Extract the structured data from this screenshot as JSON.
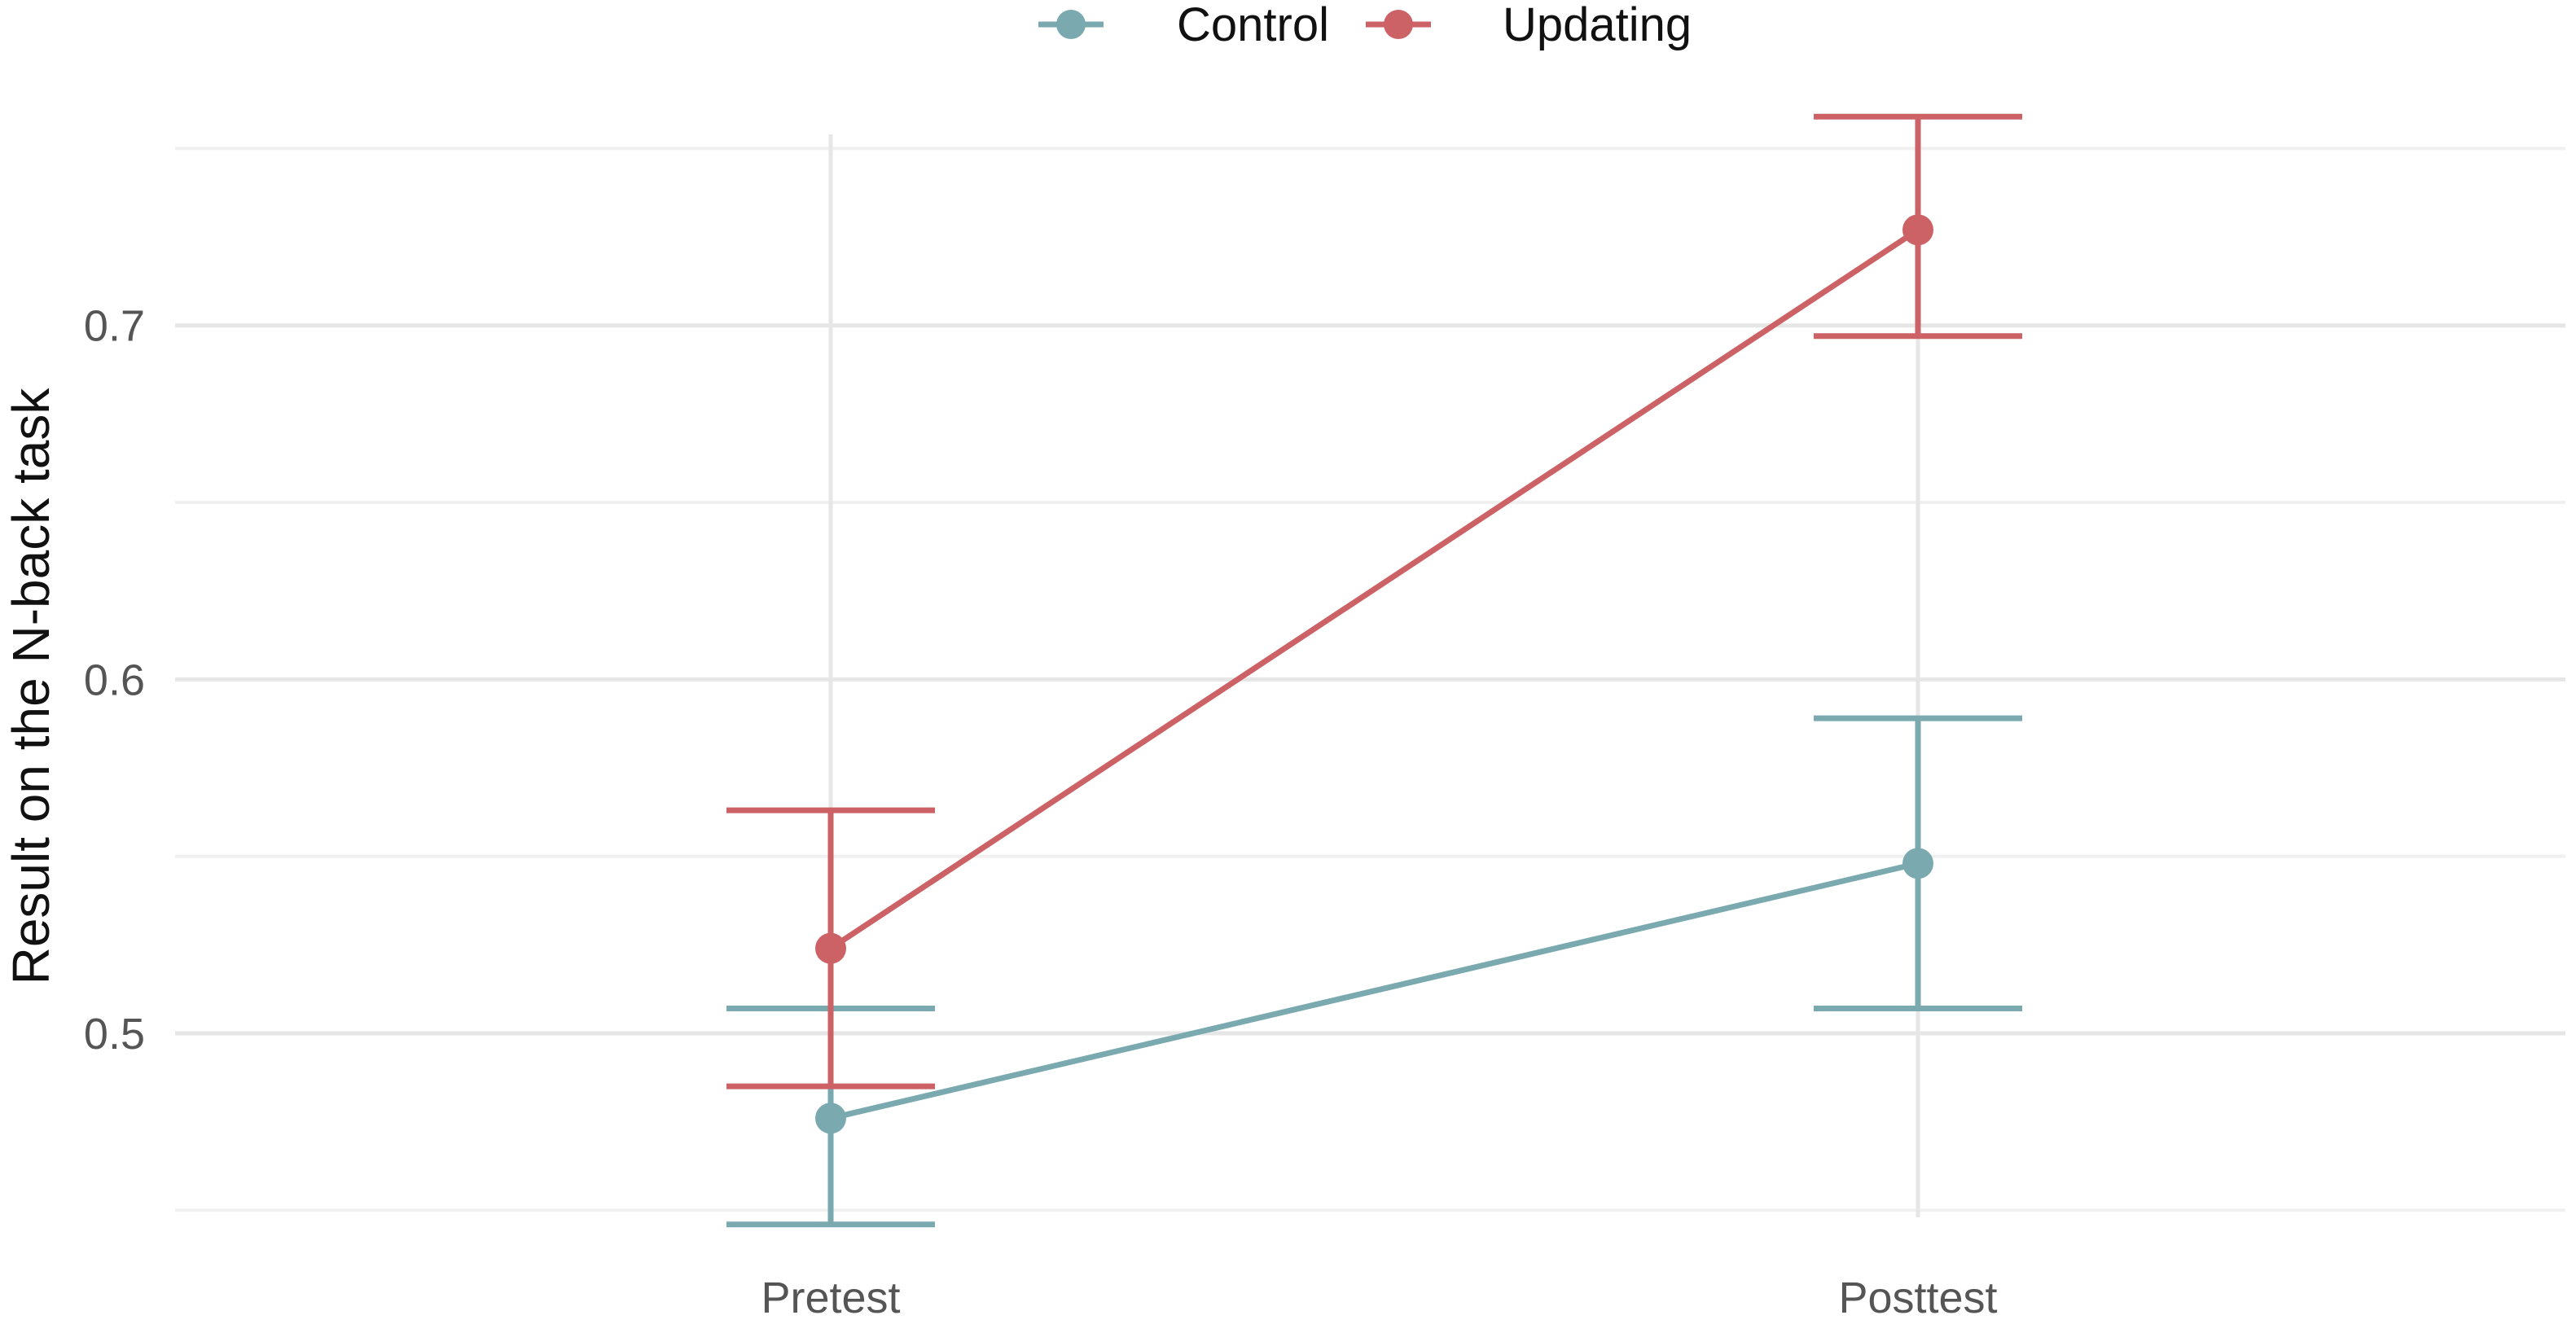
{
  "chart_data": {
    "type": "line",
    "categories": [
      "Pretest",
      "Posttest"
    ],
    "ylabel": "Result on the N-back task",
    "xlabel": "",
    "ylim": [
      0.448,
      0.754
    ],
    "yticks": [
      0.5,
      0.6,
      0.7
    ],
    "ytick_labels": [
      "0.5",
      "0.6",
      "0.7"
    ],
    "grid": true,
    "legend_position": "top",
    "series": [
      {
        "name": "Control",
        "color": "#7aaab0",
        "values": [
          0.476,
          0.548
        ],
        "error_low": [
          0.446,
          0.507
        ],
        "error_high": [
          0.507,
          0.589
        ]
      },
      {
        "name": "Updating",
        "color": "#cc6266",
        "values": [
          0.524,
          0.727
        ],
        "error_low": [
          0.485,
          0.697
        ],
        "error_high": [
          0.563,
          0.759
        ]
      }
    ]
  }
}
